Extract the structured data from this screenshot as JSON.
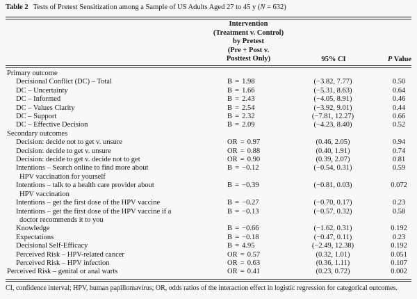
{
  "title": {
    "tag": "Table 2",
    "main": "Tests of Pretest Sensitization among a Sample of US Adults Aged 27 to 45 y (",
    "n_var": "N",
    "tail": " = 632)"
  },
  "header": {
    "intervention_lines": [
      "Intervention",
      "(Treatment v. Control)",
      "by Pretest",
      "(Pre + Post v.",
      "Posttest Only)"
    ],
    "ci": "95% CI",
    "p_italic": "P",
    "p_rest": " Value"
  },
  "table": {
    "rows": [
      {
        "label": "Primary outcome",
        "indent": 0,
        "effect": "",
        "ci": "",
        "p": ""
      },
      {
        "label": "Decisional Conflict (DC) – Total",
        "indent": 1,
        "effect": "B = 1.98",
        "ci": "(−3.82, 7.77)",
        "p": "0.50"
      },
      {
        "label": "DC – Uncertainty",
        "indent": 1,
        "effect": "B = 1.66",
        "ci": "(−5.31, 8.63)",
        "p": "0.64"
      },
      {
        "label": "DC – Informed",
        "indent": 1,
        "effect": "B = 2.43",
        "ci": "(−4.05, 8.91)",
        "p": "0.46"
      },
      {
        "label": "DC – Values Clarity",
        "indent": 1,
        "effect": "B = 2.54",
        "ci": "(−3.92, 9.01)",
        "p": "0.44"
      },
      {
        "label": "DC – Support",
        "indent": 1,
        "effect": "B = 2.32",
        "ci": "(−7.81, 12.27)",
        "p": "0.66"
      },
      {
        "label": "DC – Effective Decision",
        "indent": 1,
        "effect": "B = 2.09",
        "ci": "(−4.23, 8.40)",
        "p": "0.52"
      },
      {
        "label": "Secondary outcomes",
        "indent": 0,
        "effect": "",
        "ci": "",
        "p": ""
      },
      {
        "label": "Decision: decide not to get v. unsure",
        "indent": 1,
        "effect": "OR = 0.97",
        "ci": "(0.46, 2.05)",
        "p": "0.94"
      },
      {
        "label": "Decision: decide to get v. unsure",
        "indent": 1,
        "effect": "OR = 0.88",
        "ci": "(0.40, 1.91)",
        "p": "0.74"
      },
      {
        "label": "Decision: decide to get v. decide not to get",
        "indent": 1,
        "effect": "OR = 0.90",
        "ci": "(0.39, 2.07)",
        "p": "0.81"
      },
      {
        "label": "Intentions – Search online to find more about",
        "indent": 1,
        "effect": "B = −0.12",
        "ci": "(−0.54, 0.31)",
        "p": "0.59"
      },
      {
        "label": "HPV vaccination for yourself",
        "indent": 2,
        "effect": "",
        "ci": "",
        "p": ""
      },
      {
        "label": "Intentions – talk to a health care provider about",
        "indent": 1,
        "effect": "B = −0.39",
        "ci": "(−0.81, 0.03)",
        "p": "0.072"
      },
      {
        "label": "HPV vaccination",
        "indent": 2,
        "effect": "",
        "ci": "",
        "p": ""
      },
      {
        "label": "Intentions – get the first dose of the HPV vaccine",
        "indent": 1,
        "effect": "B = −0.27",
        "ci": "(−0.70, 0.17)",
        "p": "0.23"
      },
      {
        "label": "Intentions – get the first dose of the HPV vaccine if a",
        "indent": 1,
        "effect": "B = −0.13",
        "ci": "(−0.57, 0.32)",
        "p": "0.58"
      },
      {
        "label": "doctor recommends it to you",
        "indent": 2,
        "effect": "",
        "ci": "",
        "p": ""
      },
      {
        "label": "Knowledge",
        "indent": 1,
        "effect": "B = −0.66",
        "ci": "(−1.62, 0.31)",
        "p": "0.192"
      },
      {
        "label": "Expectations",
        "indent": 1,
        "effect": "B = −0.18",
        "ci": "(−0.47, 0.11)",
        "p": "0.23"
      },
      {
        "label": "Decisional Self-Efficacy",
        "indent": 1,
        "effect": "B = 4.95",
        "ci": "(−2.49, 12.38)",
        "p": "0.192"
      },
      {
        "label": "Perceived Risk – HPV-related cancer",
        "indent": 1,
        "effect": "OR = 0.57",
        "ci": "(0.32, 1.01)",
        "p": "0.051"
      },
      {
        "label": "Perceived Risk – HPV infection",
        "indent": 1,
        "effect": "OR = 0.63",
        "ci": "(0.36, 1.11)",
        "p": "0.107"
      },
      {
        "label": "Perceived Risk – genital or anal warts",
        "indent": 0,
        "effect": "OR = 0.41",
        "ci": "(0.23, 0.72)",
        "p": "0.002"
      }
    ]
  },
  "footnote": "CI, confidence interval; HPV, human papillomavirus; OR, odds ratios of the interaction effect in logistic regression for categorical outcomes.",
  "colors": {
    "background": "#f8f8f6",
    "text": "#161616",
    "rule": "#1d1d1d"
  }
}
